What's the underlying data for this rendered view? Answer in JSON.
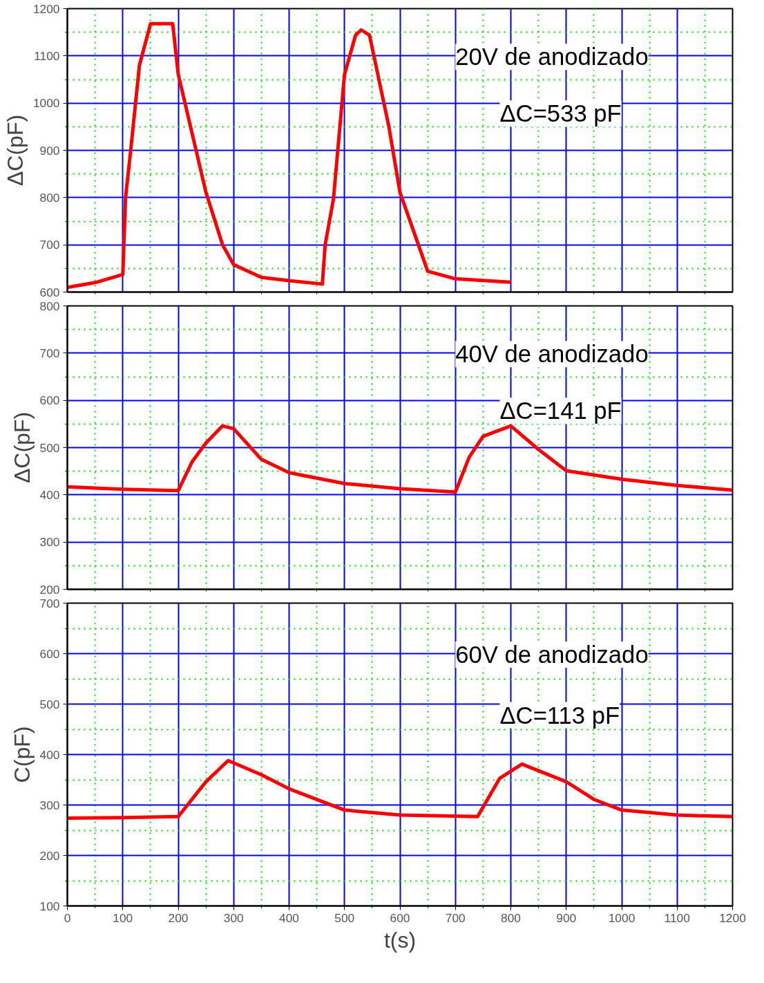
{
  "chart_data": [
    {
      "type": "line",
      "ylabel": "ΔC(pF)",
      "xlim": [
        0,
        1200
      ],
      "xticks": [
        0,
        {
          "value": 50,
          "label": null
        },
        100,
        {
          "value": 150,
          "label": null
        },
        200,
        {
          "value": 250,
          "label": null
        },
        300,
        {
          "value": 350,
          "label": null
        },
        400,
        {
          "value": 450,
          "label": null
        },
        500,
        {
          "value": 550,
          "label": null
        },
        600,
        {
          "value": 650,
          "label": null
        },
        700,
        {
          "value": 750,
          "label": null
        },
        800,
        {
          "value": 850,
          "label": null
        },
        900,
        {
          "value": 950,
          "label": null
        },
        1000,
        {
          "value": 1050,
          "label": null
        },
        1100,
        {
          "value": 1150,
          "label": null
        },
        1200
      ],
      "ylim": [
        600,
        1200
      ],
      "yticks": [
        600,
        {
          "value": 650,
          "label": null
        },
        700,
        {
          "value": 750,
          "label": null
        },
        800,
        {
          "value": 850,
          "label": null
        },
        900,
        {
          "value": 950,
          "label": null
        },
        1000,
        {
          "value": 1050,
          "label": null
        },
        1100,
        {
          "value": 1150,
          "label": null
        },
        1200
      ],
      "tick_labels": "y",
      "grid": true,
      "annotations": [
        "20V de anodizado",
        "ΔC=533 pF"
      ],
      "series": [
        {
          "color": "#ff0000",
          "x": [
            0,
            50,
            100,
            105,
            115,
            130,
            150,
            190,
            200,
            250,
            280,
            300,
            350,
            400,
            460,
            465,
            480,
            500,
            520,
            530,
            545,
            580,
            600,
            650,
            700,
            800
          ],
          "values": [
            610,
            620,
            637,
            800,
            908,
            1080,
            1168,
            1168,
            1061,
            811,
            700,
            658,
            631,
            624,
            617,
            700,
            797,
            1061,
            1144,
            1155,
            1144,
            950,
            811,
            644,
            628,
            621
          ]
        }
      ]
    },
    {
      "type": "line",
      "ylabel": "ΔC(pF)",
      "xlim": [
        0,
        1200
      ],
      "xticks": [
        0,
        {
          "value": 50,
          "label": null
        },
        100,
        {
          "value": 150,
          "label": null
        },
        200,
        {
          "value": 250,
          "label": null
        },
        300,
        {
          "value": 350,
          "label": null
        },
        400,
        {
          "value": 450,
          "label": null
        },
        500,
        {
          "value": 550,
          "label": null
        },
        600,
        {
          "value": 650,
          "label": null
        },
        700,
        {
          "value": 750,
          "label": null
        },
        800,
        {
          "value": 850,
          "label": null
        },
        900,
        {
          "value": 950,
          "label": null
        },
        1000,
        {
          "value": 1050,
          "label": null
        },
        1100,
        {
          "value": 1150,
          "label": null
        },
        1200
      ],
      "ylim": [
        200,
        800
      ],
      "yticks": [
        200,
        {
          "value": 250,
          "label": null
        },
        300,
        {
          "value": 350,
          "label": null
        },
        400,
        {
          "value": 450,
          "label": null
        },
        500,
        {
          "value": 550,
          "label": null
        },
        600,
        {
          "value": 650,
          "label": null
        },
        700,
        {
          "value": 750,
          "label": null
        },
        800
      ],
      "tick_labels": "y",
      "grid": true,
      "annotations": [
        "40V de anodizado",
        "ΔC=141 pF"
      ],
      "series": [
        {
          "color": "#ff0000",
          "x": [
            0,
            100,
            200,
            225,
            250,
            280,
            300,
            350,
            400,
            500,
            600,
            700,
            725,
            750,
            800,
            850,
            900,
            1000,
            1100,
            1200
          ],
          "values": [
            417,
            412,
            409,
            470,
            510,
            546,
            540,
            475,
            447,
            424,
            413,
            406,
            480,
            524,
            546,
            496,
            451,
            433,
            420,
            410
          ]
        }
      ]
    },
    {
      "type": "line",
      "ylabel": "C(pF)",
      "xlabel": "t(s)",
      "xlim": [
        0,
        1200
      ],
      "xticks": [
        0,
        {
          "value": 50,
          "label": null
        },
        100,
        {
          "value": 150,
          "label": null
        },
        200,
        {
          "value": 250,
          "label": null
        },
        300,
        {
          "value": 350,
          "label": null
        },
        400,
        {
          "value": 450,
          "label": null
        },
        500,
        {
          "value": 550,
          "label": null
        },
        600,
        {
          "value": 650,
          "label": null
        },
        700,
        {
          "value": 750,
          "label": null
        },
        800,
        {
          "value": 850,
          "label": null
        },
        900,
        {
          "value": 950,
          "label": null
        },
        1000,
        {
          "value": 1050,
          "label": null
        },
        1100,
        {
          "value": 1150,
          "label": null
        },
        1200
      ],
      "ylim": [
        100,
        700
      ],
      "yticks": [
        100,
        {
          "value": 150,
          "label": null
        },
        200,
        {
          "value": 250,
          "label": null
        },
        300,
        {
          "value": 350,
          "label": null
        },
        400,
        {
          "value": 450,
          "label": null
        },
        500,
        {
          "value": 550,
          "label": null
        },
        600,
        {
          "value": 650,
          "label": null
        },
        700
      ],
      "grid": true,
      "annotations": [
        "60V de anodizado",
        "ΔC=113 pF"
      ],
      "series": [
        {
          "color": "#ff0000",
          "x": [
            0,
            100,
            200,
            250,
            290,
            350,
            400,
            500,
            600,
            740,
            780,
            820,
            900,
            950,
            1000,
            1100,
            1200
          ],
          "values": [
            274,
            275,
            277,
            346,
            388,
            360,
            332,
            290,
            280,
            277,
            353,
            381,
            346,
            311,
            290,
            280,
            277
          ]
        }
      ]
    }
  ]
}
